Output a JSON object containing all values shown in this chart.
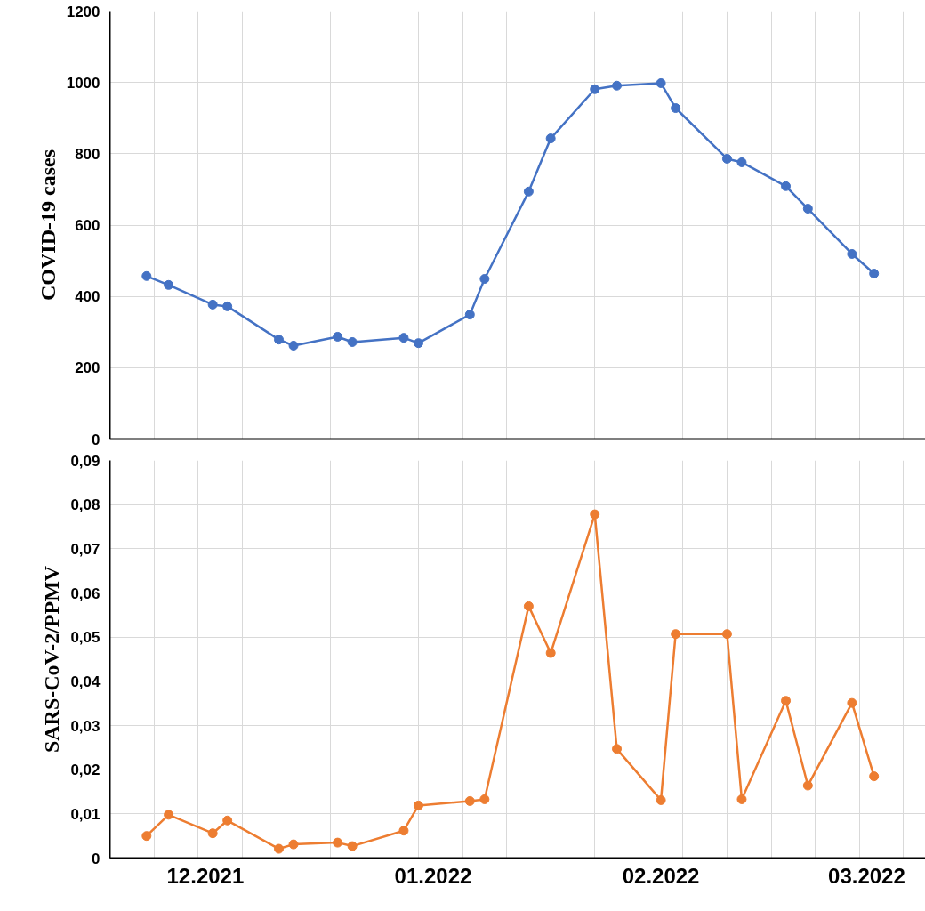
{
  "chart_data": [
    {
      "type": "line",
      "ylabel": "COVID-19 cases",
      "tick_labels": "y",
      "grid": true,
      "marker": "circle",
      "x": [
        "2021-11-23",
        "2021-11-26",
        "2021-12-02",
        "2021-12-04",
        "2021-12-11",
        "2021-12-13",
        "2021-12-19",
        "2021-12-21",
        "2021-12-28",
        "2021-12-30",
        "2022-01-06",
        "2022-01-08",
        "2022-01-14",
        "2022-01-17",
        "2022-01-23",
        "2022-01-26",
        "2022-02-01",
        "2022-02-03",
        "2022-02-10",
        "2022-02-12",
        "2022-02-18",
        "2022-02-21",
        "2022-02-27",
        "2022-03-02"
      ],
      "series": [
        {
          "color": "#4472c4",
          "values": [
            457,
            432,
            377,
            372,
            279,
            262,
            287,
            272,
            284,
            269,
            349,
            449,
            694,
            843,
            981,
            991,
            998,
            928,
            786,
            776,
            709,
            646,
            519,
            464
          ]
        }
      ],
      "xlim": [
        "2021-11-18",
        "2022-03-09"
      ],
      "ylim": [
        0,
        1200
      ],
      "xticks": [
        {
          "value": "2021-11-24",
          "label": null
        },
        {
          "value": "2021-11-30",
          "label": null
        },
        {
          "value": "2021-12-06",
          "label": null
        },
        {
          "value": "2021-12-12",
          "label": null
        },
        {
          "value": "2021-12-18",
          "label": null
        },
        {
          "value": "2021-12-24",
          "label": null
        },
        {
          "value": "2021-12-30",
          "label": null
        },
        {
          "value": "2022-01-05",
          "label": null
        },
        {
          "value": "2022-01-11",
          "label": null
        },
        {
          "value": "2022-01-17",
          "label": null
        },
        {
          "value": "2022-01-23",
          "label": null
        },
        {
          "value": "2022-01-29",
          "label": null
        },
        {
          "value": "2022-02-04",
          "label": null
        },
        {
          "value": "2022-02-10",
          "label": null
        },
        {
          "value": "2022-02-16",
          "label": null
        },
        {
          "value": "2022-02-22",
          "label": null
        },
        {
          "value": "2022-02-28",
          "label": null
        },
        {
          "value": "2022-03-06",
          "label": null
        }
      ],
      "yticks": [
        0,
        200,
        400,
        600,
        800,
        1000,
        1200
      ]
    },
    {
      "type": "line",
      "ylabel": "SARS-CoV-2/PPMV",
      "grid": true,
      "marker": "circle",
      "x": [
        "2021-11-23",
        "2021-11-26",
        "2021-12-02",
        "2021-12-04",
        "2021-12-11",
        "2021-12-13",
        "2021-12-19",
        "2021-12-21",
        "2021-12-28",
        "2021-12-30",
        "2022-01-06",
        "2022-01-08",
        "2022-01-14",
        "2022-01-17",
        "2022-01-23",
        "2022-01-26",
        "2022-02-01",
        "2022-02-03",
        "2022-02-10",
        "2022-02-12",
        "2022-02-18",
        "2022-02-21",
        "2022-02-27",
        "2022-03-02"
      ],
      "series": [
        {
          "color": "#ed7d31",
          "values": [
            0.005,
            0.0098,
            0.0056,
            0.0085,
            0.0021,
            0.0031,
            0.0035,
            0.0027,
            0.0062,
            0.0119,
            0.0129,
            0.0133,
            0.057,
            0.0464,
            0.0778,
            0.0247,
            0.0131,
            0.0507,
            0.0507,
            0.0133,
            0.0356,
            0.0164,
            0.0351,
            0.0185
          ]
        }
      ],
      "xlim": [
        "2021-11-18",
        "2022-03-09"
      ],
      "ylim": [
        0,
        0.09
      ],
      "xticks": [
        {
          "value": "2021-11-24",
          "label": null
        },
        {
          "value": "2021-11-30",
          "label": null
        },
        {
          "value": "2021-12-06",
          "label": null
        },
        {
          "value": "2021-12-12",
          "label": null
        },
        {
          "value": "2021-12-18",
          "label": null
        },
        {
          "value": "2021-12-24",
          "label": null
        },
        {
          "value": "2021-12-30",
          "label": null
        },
        {
          "value": "2022-01-05",
          "label": null
        },
        {
          "value": "2022-01-11",
          "label": null
        },
        {
          "value": "2022-01-17",
          "label": null
        },
        {
          "value": "2022-01-23",
          "label": null
        },
        {
          "value": "2022-01-29",
          "label": null
        },
        {
          "value": "2022-02-04",
          "label": null
        },
        {
          "value": "2022-02-10",
          "label": null
        },
        {
          "value": "2022-02-16",
          "label": null
        },
        {
          "value": "2022-02-22",
          "label": null
        },
        {
          "value": "2022-02-28",
          "label": null
        },
        {
          "value": "2022-03-06",
          "label": null
        },
        {
          "value": "2021-12-01",
          "label": "12.2021"
        },
        {
          "value": "2022-01-01",
          "label": "01.2022"
        },
        {
          "value": "2022-02-01",
          "label": "02.2022"
        },
        {
          "value": "2022-03-01",
          "label": "03.2022"
        }
      ],
      "yticks": [
        0,
        {
          "value": 0.01,
          "label": "0,01"
        },
        {
          "value": 0.02,
          "label": "0,02"
        },
        {
          "value": 0.03,
          "label": "0,03"
        },
        {
          "value": 0.04,
          "label": "0,04"
        },
        {
          "value": 0.05,
          "label": "0,05"
        },
        {
          "value": 0.06,
          "label": "0,06"
        },
        {
          "value": 0.07,
          "label": "0,07"
        },
        {
          "value": 0.08,
          "label": "0,08"
        },
        {
          "value": 0.09,
          "label": "0,09"
        }
      ]
    }
  ]
}
